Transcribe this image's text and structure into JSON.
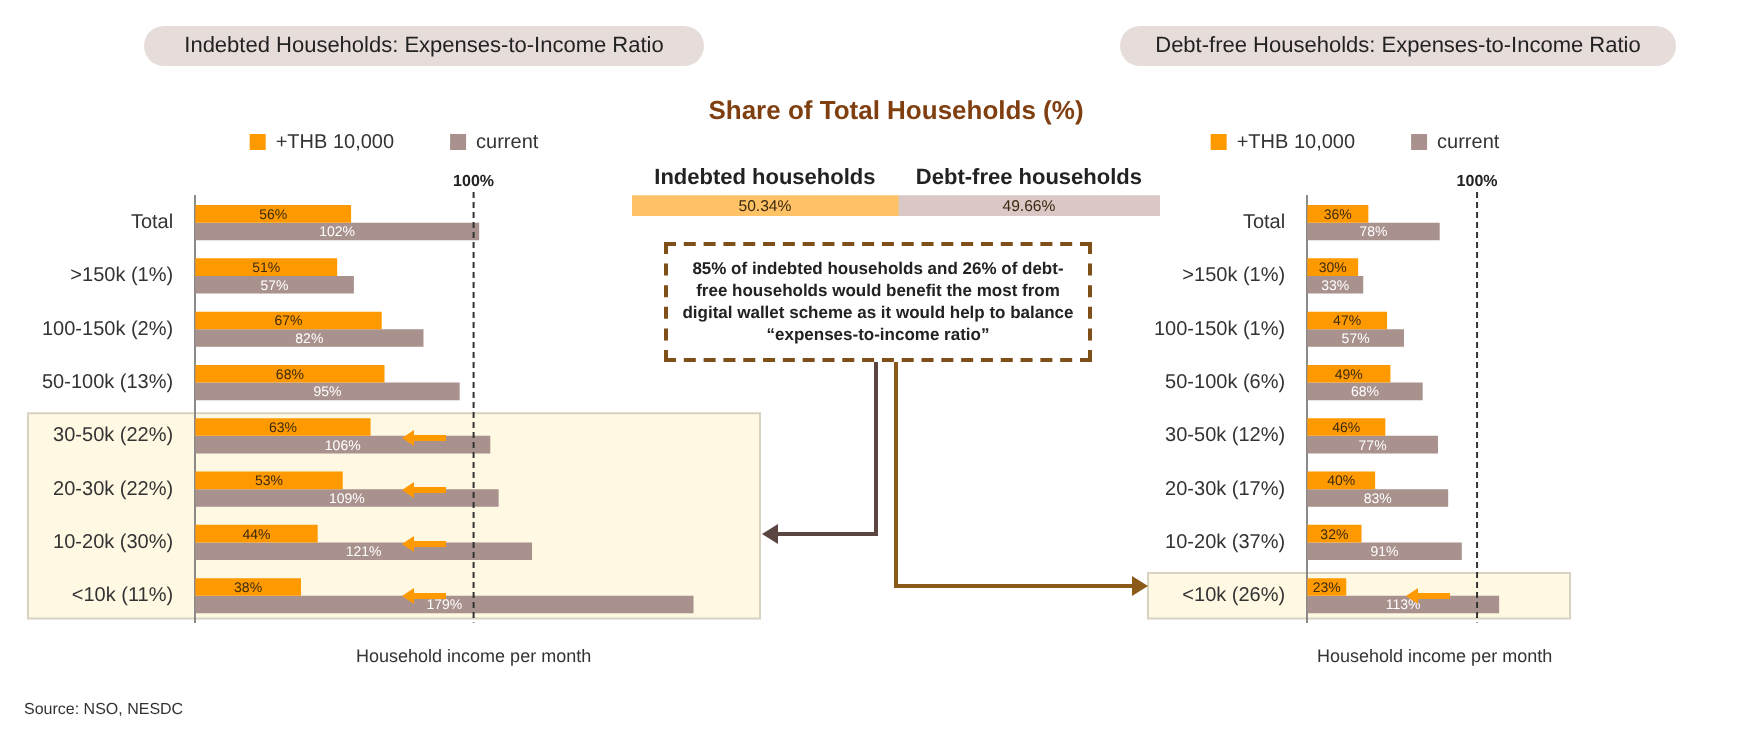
{
  "chart_data": [
    {
      "type": "bar",
      "orientation": "horizontal",
      "title": "Indebted Households: Expenses-to-Income Ratio",
      "xlabel": "Household income per month",
      "categories": [
        "Total",
        ">150k (1%)",
        "100-150k (2%)",
        "50-100k (13%)",
        "30-50k (22%)",
        "20-30k (22%)",
        "10-20k (30%)",
        "<10k (11%)"
      ],
      "series": [
        {
          "name": "+THB 10,000",
          "color": "#ff9900",
          "values": [
            56,
            51,
            67,
            68,
            63,
            53,
            44,
            38
          ],
          "value_labels": [
            "56%",
            "51%",
            "67%",
            "68%",
            "63%",
            "53%",
            "44%",
            "38%"
          ]
        },
        {
          "name": "current",
          "color": "#a9918d",
          "values": [
            102,
            57,
            82,
            95,
            106,
            109,
            121,
            179
          ],
          "value_labels": [
            "102%",
            "57%",
            "82%",
            "95%",
            "106%",
            "109%",
            "121%",
            "179%"
          ]
        }
      ],
      "ref_lines": [
        {
          "axis": "x",
          "value": 100,
          "label": "100%",
          "line_style": "dashed"
        }
      ],
      "bands": [
        {
          "axis": "y",
          "from": "30-50k (22%)",
          "to": "<10k (11%)",
          "color": "#fff9e3"
        }
      ],
      "legend": "top",
      "grid": false,
      "tick_labels": "y",
      "annotations": [
        "Source: NSO, NESDC"
      ]
    },
    {
      "type": "bar",
      "orientation": "horizontal",
      "stacked": true,
      "title": "Share of Total Households (%)",
      "categories": [
        null
      ],
      "series": [
        {
          "name": "Indebted households",
          "color": "#ffc266",
          "values": [
            50.34
          ],
          "value_labels": [
            "50.34%"
          ]
        },
        {
          "name": "Debt-free households",
          "color": "#d9c8c6",
          "values": [
            49.66
          ],
          "value_labels": [
            "49.66%"
          ]
        }
      ],
      "grid": false,
      "tick_labels": false,
      "annotations": [
        "85% of indebted households and 26% of debt-free households would benefit the most from digital wallet scheme as it would help to balance “expenses-to-income ratio”"
      ]
    },
    {
      "type": "bar",
      "orientation": "horizontal",
      "title": "Debt-free Households: Expenses-to-Income Ratio",
      "xlabel": "Household income per month",
      "categories": [
        "Total",
        ">150k (1%)",
        "100-150k (1%)",
        "50-100k (6%)",
        "30-50k (12%)",
        "20-30k (17%)",
        "10-20k (37%)",
        "<10k (26%)"
      ],
      "series": [
        {
          "name": "+THB 10,000",
          "color": "#ff9900",
          "values": [
            36,
            30,
            47,
            49,
            46,
            40,
            32,
            23
          ],
          "value_labels": [
            "36%",
            "30%",
            "47%",
            "49%",
            "46%",
            "40%",
            "32%",
            "23%"
          ]
        },
        {
          "name": "current",
          "color": "#a9918d",
          "values": [
            78,
            33,
            57,
            68,
            77,
            83,
            91,
            113
          ],
          "value_labels": [
            "78%",
            "33%",
            "57%",
            "68%",
            "77%",
            "83%",
            "91%",
            "113%"
          ]
        }
      ],
      "ref_lines": [
        {
          "axis": "x",
          "value": 100,
          "label": "100%",
          "line_style": "dashed"
        }
      ],
      "bands": [
        {
          "axis": "y",
          "from": "<10k (26%)",
          "to": "<10k (26%)",
          "color": "#fff9e3"
        }
      ],
      "legend": "top",
      "grid": false,
      "tick_labels": "y"
    }
  ]
}
